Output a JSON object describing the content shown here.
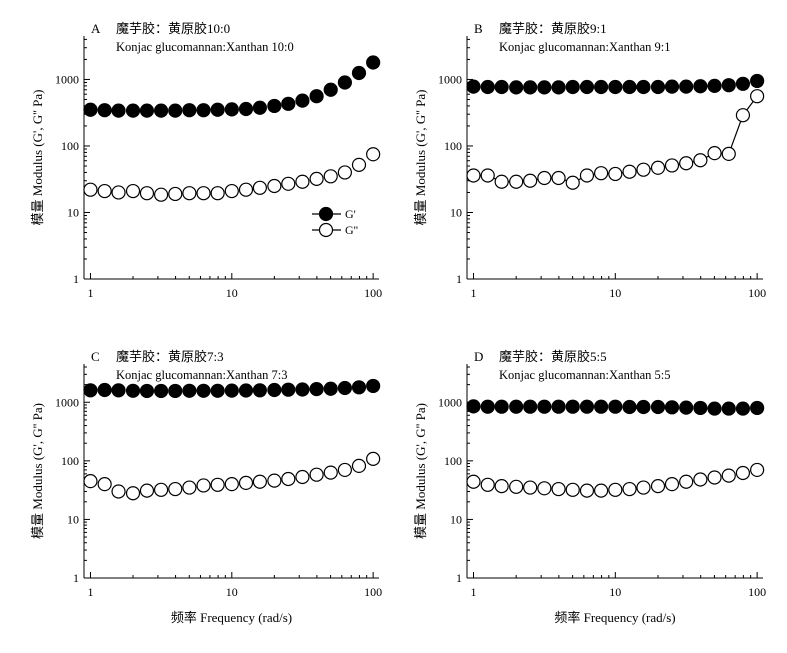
{
  "figure": {
    "ylabel": "模量 Modulus (G', G'' Pa)",
    "xlabel": "频率 Frequency (rad/s)",
    "legend_entries": [
      "G'",
      "G''"
    ]
  },
  "chart_data": [
    {
      "type": "scatter",
      "panel": "A",
      "title": "魔芋胶：黄原胶10:0",
      "subtitle": "Konjac glucomannan:Xanthan 10:0",
      "xlabel": "",
      "ylabel": "模量 Modulus (G', G'' Pa)",
      "xscale": "log",
      "yscale": "log",
      "xlim": [
        0.9,
        110
      ],
      "ylim": [
        1,
        4500
      ],
      "xticks": [
        "1",
        "10",
        "100"
      ],
      "yticks": [
        "1",
        "10",
        "100",
        "1000"
      ],
      "legend": "right-middle",
      "series": [
        {
          "name": "G'",
          "marker": "filled",
          "connect": false,
          "x": [
            1,
            1.26,
            1.58,
            2,
            2.51,
            3.16,
            3.98,
            5.01,
            6.31,
            7.94,
            10,
            12.6,
            15.8,
            20,
            25.1,
            31.6,
            39.8,
            50.1,
            63.1,
            79.4,
            100
          ],
          "y": [
            350,
            345,
            340,
            340,
            340,
            340,
            340,
            345,
            345,
            350,
            355,
            360,
            375,
            400,
            430,
            480,
            560,
            700,
            900,
            1250,
            1800
          ]
        },
        {
          "name": "G''",
          "marker": "open",
          "connect": false,
          "x": [
            1,
            1.26,
            1.58,
            2,
            2.51,
            3.16,
            3.98,
            5.01,
            6.31,
            7.94,
            10,
            12.6,
            15.8,
            20,
            25.1,
            31.6,
            39.8,
            50.1,
            63.1,
            79.4,
            100
          ],
          "y": [
            22,
            21,
            20,
            21,
            19.5,
            18.5,
            19,
            19.5,
            19.5,
            19.5,
            21,
            22,
            23.5,
            25,
            27,
            29,
            32,
            35,
            40,
            52,
            75
          ]
        }
      ]
    },
    {
      "type": "scatter",
      "panel": "B",
      "title": "魔芋胶：黄原胶9:1",
      "subtitle": "Konjac glucomannan:Xanthan 9:1",
      "xlabel": "",
      "ylabel": "模量 Modulus (G', G'' Pa)",
      "xscale": "log",
      "yscale": "log",
      "xlim": [
        0.9,
        110
      ],
      "ylim": [
        1,
        4500
      ],
      "xticks": [
        "1",
        "10",
        "100"
      ],
      "yticks": [
        "1",
        "10",
        "100",
        "1000"
      ],
      "series": [
        {
          "name": "G'",
          "marker": "filled",
          "connect": false,
          "x": [
            1,
            1.26,
            1.58,
            2,
            2.51,
            3.16,
            3.98,
            5.01,
            6.31,
            7.94,
            10,
            12.6,
            15.8,
            20,
            25.1,
            31.6,
            39.8,
            50.1,
            63.1,
            79.4,
            100
          ],
          "y": [
            780,
            770,
            770,
            760,
            760,
            760,
            760,
            770,
            770,
            770,
            770,
            770,
            770,
            770,
            780,
            780,
            790,
            800,
            820,
            860,
            950
          ]
        },
        {
          "name": "G''",
          "marker": "open",
          "connect": true,
          "x": [
            1,
            1.26,
            1.58,
            2,
            2.51,
            3.16,
            3.98,
            5.01,
            6.31,
            7.94,
            10,
            12.6,
            15.8,
            20,
            25.1,
            31.6,
            39.8,
            50.1,
            63.1,
            79.4,
            100
          ],
          "y": [
            36,
            36,
            29,
            29,
            30,
            33,
            33,
            28,
            36,
            39,
            38,
            41,
            44,
            47,
            51,
            55,
            61,
            78,
            76,
            290,
            560
          ]
        }
      ]
    },
    {
      "type": "scatter",
      "panel": "C",
      "title": "魔芋胶：黄原胶7:3",
      "subtitle": "Konjac glucomannan:Xanthan 7:3",
      "xlabel": "频率 Frequency (rad/s)",
      "ylabel": "模量 Modulus (G', G'' Pa)",
      "xscale": "log",
      "yscale": "log",
      "xlim": [
        0.9,
        110
      ],
      "ylim": [
        1,
        4500
      ],
      "xticks": [
        "1",
        "10",
        "100"
      ],
      "yticks": [
        "1",
        "10",
        "100",
        "1000"
      ],
      "series": [
        {
          "name": "G'",
          "marker": "filled",
          "connect": false,
          "x": [
            1,
            1.26,
            1.58,
            2,
            2.51,
            3.16,
            3.98,
            5.01,
            6.31,
            7.94,
            10,
            12.6,
            15.8,
            20,
            25.1,
            31.6,
            39.8,
            50.1,
            63.1,
            79.4,
            100
          ],
          "y": [
            1600,
            1620,
            1600,
            1570,
            1560,
            1560,
            1560,
            1570,
            1570,
            1570,
            1580,
            1590,
            1600,
            1620,
            1640,
            1650,
            1680,
            1700,
            1750,
            1800,
            1900
          ]
        },
        {
          "name": "G''",
          "marker": "open",
          "connect": false,
          "x": [
            1,
            1.26,
            1.58,
            2,
            2.51,
            3.16,
            3.98,
            5.01,
            6.31,
            7.94,
            10,
            12.6,
            15.8,
            20,
            25.1,
            31.6,
            39.8,
            50.1,
            63.1,
            79.4,
            100
          ],
          "y": [
            45,
            40,
            30,
            28,
            31,
            32,
            33,
            35,
            38,
            39,
            40,
            42,
            44,
            46,
            49,
            53,
            58,
            63,
            70,
            82,
            108
          ]
        }
      ]
    },
    {
      "type": "scatter",
      "panel": "D",
      "title": "魔芋胶：黄原胶5:5",
      "subtitle": "Konjac glucomannan:Xanthan 5:5",
      "xlabel": "频率 Frequency (rad/s)",
      "ylabel": "模量 Modulus (G', G'' Pa)",
      "xscale": "log",
      "yscale": "log",
      "xlim": [
        0.9,
        110
      ],
      "ylim": [
        1,
        4500
      ],
      "xticks": [
        "1",
        "10",
        "100"
      ],
      "yticks": [
        "1",
        "10",
        "100",
        "1000"
      ],
      "series": [
        {
          "name": "G'",
          "marker": "filled",
          "connect": false,
          "x": [
            1,
            1.26,
            1.58,
            2,
            2.51,
            3.16,
            3.98,
            5.01,
            6.31,
            7.94,
            10,
            12.6,
            15.8,
            20,
            25.1,
            31.6,
            39.8,
            50.1,
            63.1,
            79.4,
            100
          ],
          "y": [
            850,
            840,
            840,
            840,
            840,
            840,
            840,
            840,
            840,
            840,
            840,
            830,
            830,
            830,
            820,
            810,
            800,
            780,
            780,
            780,
            800
          ]
        },
        {
          "name": "G''",
          "marker": "open",
          "connect": false,
          "x": [
            1,
            1.26,
            1.58,
            2,
            2.51,
            3.16,
            3.98,
            5.01,
            6.31,
            7.94,
            10,
            12.6,
            15.8,
            20,
            25.1,
            31.6,
            39.8,
            50.1,
            63.1,
            79.4,
            100
          ],
          "y": [
            44,
            39,
            37,
            36,
            35,
            34,
            33,
            32,
            31,
            31,
            32,
            33,
            35,
            37,
            40,
            44,
            48,
            52,
            56,
            62,
            70
          ]
        }
      ]
    }
  ]
}
